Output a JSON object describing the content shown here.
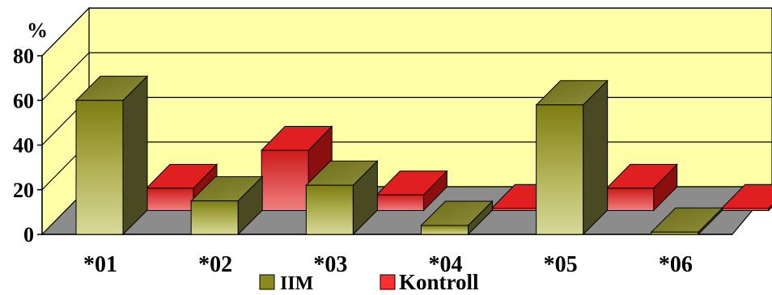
{
  "chart_data": {
    "type": "bar",
    "title": "",
    "xlabel": "",
    "ylabel": "%",
    "ylim": [
      0,
      80
    ],
    "yticks": [
      "0",
      "20",
      "40",
      "60",
      "80"
    ],
    "grid": true,
    "legend_position": "bottom",
    "categories": [
      "*01",
      "*02",
      "*03",
      "*04",
      "*05",
      "*06"
    ],
    "series": [
      {
        "name": "IIM",
        "values": [
          60,
          15,
          22,
          4,
          58,
          1
        ],
        "color": "#8a8a1e"
      },
      {
        "name": "Kontroll",
        "values": [
          10,
          27,
          7,
          1,
          10,
          1
        ],
        "color": "#e01818"
      }
    ]
  }
}
